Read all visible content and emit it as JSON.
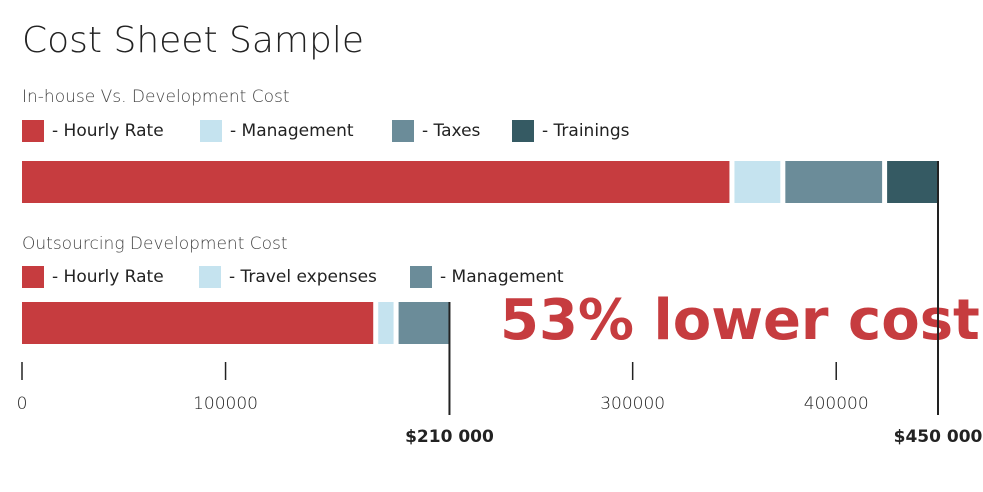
{
  "chart_data": {
    "type": "stacked-barh",
    "title": "Cost Sheet Sample",
    "annotation": "53% lower cost",
    "xlim": [
      0,
      450000
    ],
    "xticks": [
      0,
      100000,
      300000,
      400000
    ],
    "bars": [
      {
        "label": "In-house Vs. Development Cost",
        "series": [
          {
            "name": "- Hourly Rate",
            "color": "#c63c3f",
            "value": 350000
          },
          {
            "name": "- Management",
            "color": "#c5e3ef",
            "value": 25000
          },
          {
            "name": "- Taxes",
            "color": "#6b8c99",
            "value": 50000
          },
          {
            "name": "- Trainings",
            "color": "#355a63",
            "value": 25000
          }
        ],
        "total": {
          "value": 450000,
          "label": "$450 000"
        }
      },
      {
        "label": "Outsourcing Development Cost",
        "series": [
          {
            "name": "- Hourly Rate",
            "color": "#c63c3f",
            "value": 175000
          },
          {
            "name": "- Travel expenses",
            "color": "#c5e3ef",
            "value": 10000
          },
          {
            "name": "- Management",
            "color": "#6b8c99",
            "value": 25000
          }
        ],
        "total": {
          "value": 210000,
          "label": "$210 000"
        }
      }
    ]
  }
}
